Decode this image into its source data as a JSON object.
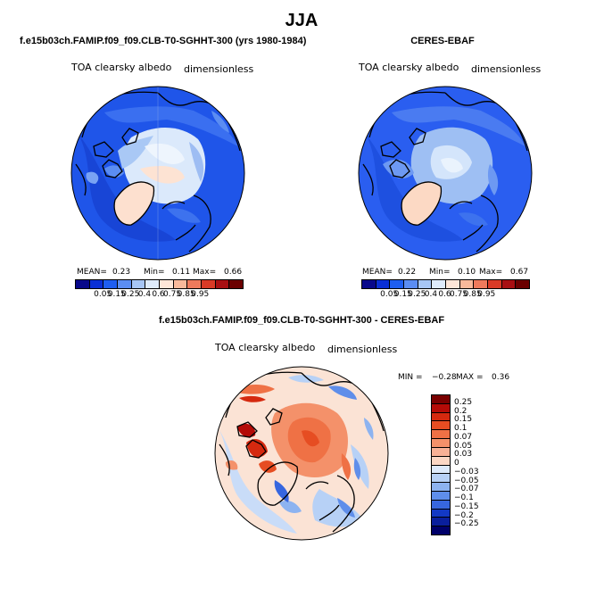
{
  "figure": {
    "season": "JJA",
    "model_title": "f.e15b03ch.FAMIP.f09_f09.CLB-T0-SGHHT-300 (yrs 1980-1984)",
    "obs_title": "CERES-EBAF",
    "diff_title": "f.e15b03ch.FAMIP.f09_f09.CLB-T0-SGHHT-300 - CERES-EBAF"
  },
  "panels": {
    "model": {
      "variable": "TOA clearsky albedo",
      "units": "dimensionless",
      "mean_label": "MEAN=",
      "mean": "0.23",
      "min_label": "Min=",
      "min": "0.11",
      "max_label": "Max=",
      "max": "0.66"
    },
    "obs": {
      "variable": "TOA clearsky albedo",
      "units": "dimensionless",
      "mean_label": "MEAN=",
      "mean": "0.22",
      "min_label": "Min=",
      "min": "0.10",
      "max_label": "Max=",
      "max": "0.67"
    },
    "diff": {
      "variable": "TOA clearsky albedo",
      "units": "dimensionless",
      "min_label": "MIN =",
      "min": "−0.28",
      "max_label": "MAX =",
      "max": "0.36"
    }
  },
  "abs_colorbar": {
    "labels": [
      "0.05",
      "0.15",
      "0.25",
      "0.4",
      "0.6",
      "0.75",
      "0.85",
      "0.95"
    ],
    "colors": [
      "#08088a",
      "#0a2fd6",
      "#1e5ef0",
      "#5b8df2",
      "#a7c6f5",
      "#deebfb",
      "#fde6d8",
      "#f8b99b",
      "#ee7a5c",
      "#d93a26",
      "#a80f12",
      "#6b0000"
    ]
  },
  "diff_colorbar": {
    "labels": [
      "0.25",
      "0.2",
      "0.15",
      "0.1",
      "0.07",
      "0.05",
      "0.03",
      "0",
      "−0.03",
      "−0.05",
      "−0.07",
      "−0.1",
      "−0.15",
      "−0.2",
      "−0.25"
    ],
    "colors": [
      "#7a0000",
      "#b40b07",
      "#d5290f",
      "#e64d22",
      "#ef7145",
      "#f4916a",
      "#f8b196",
      "#fbd7c4",
      "#ddeafb",
      "#b7d1f6",
      "#8db3f0",
      "#5f8eea",
      "#3766df",
      "#1339c4",
      "#0a1f9c",
      "#00006a"
    ]
  }
}
